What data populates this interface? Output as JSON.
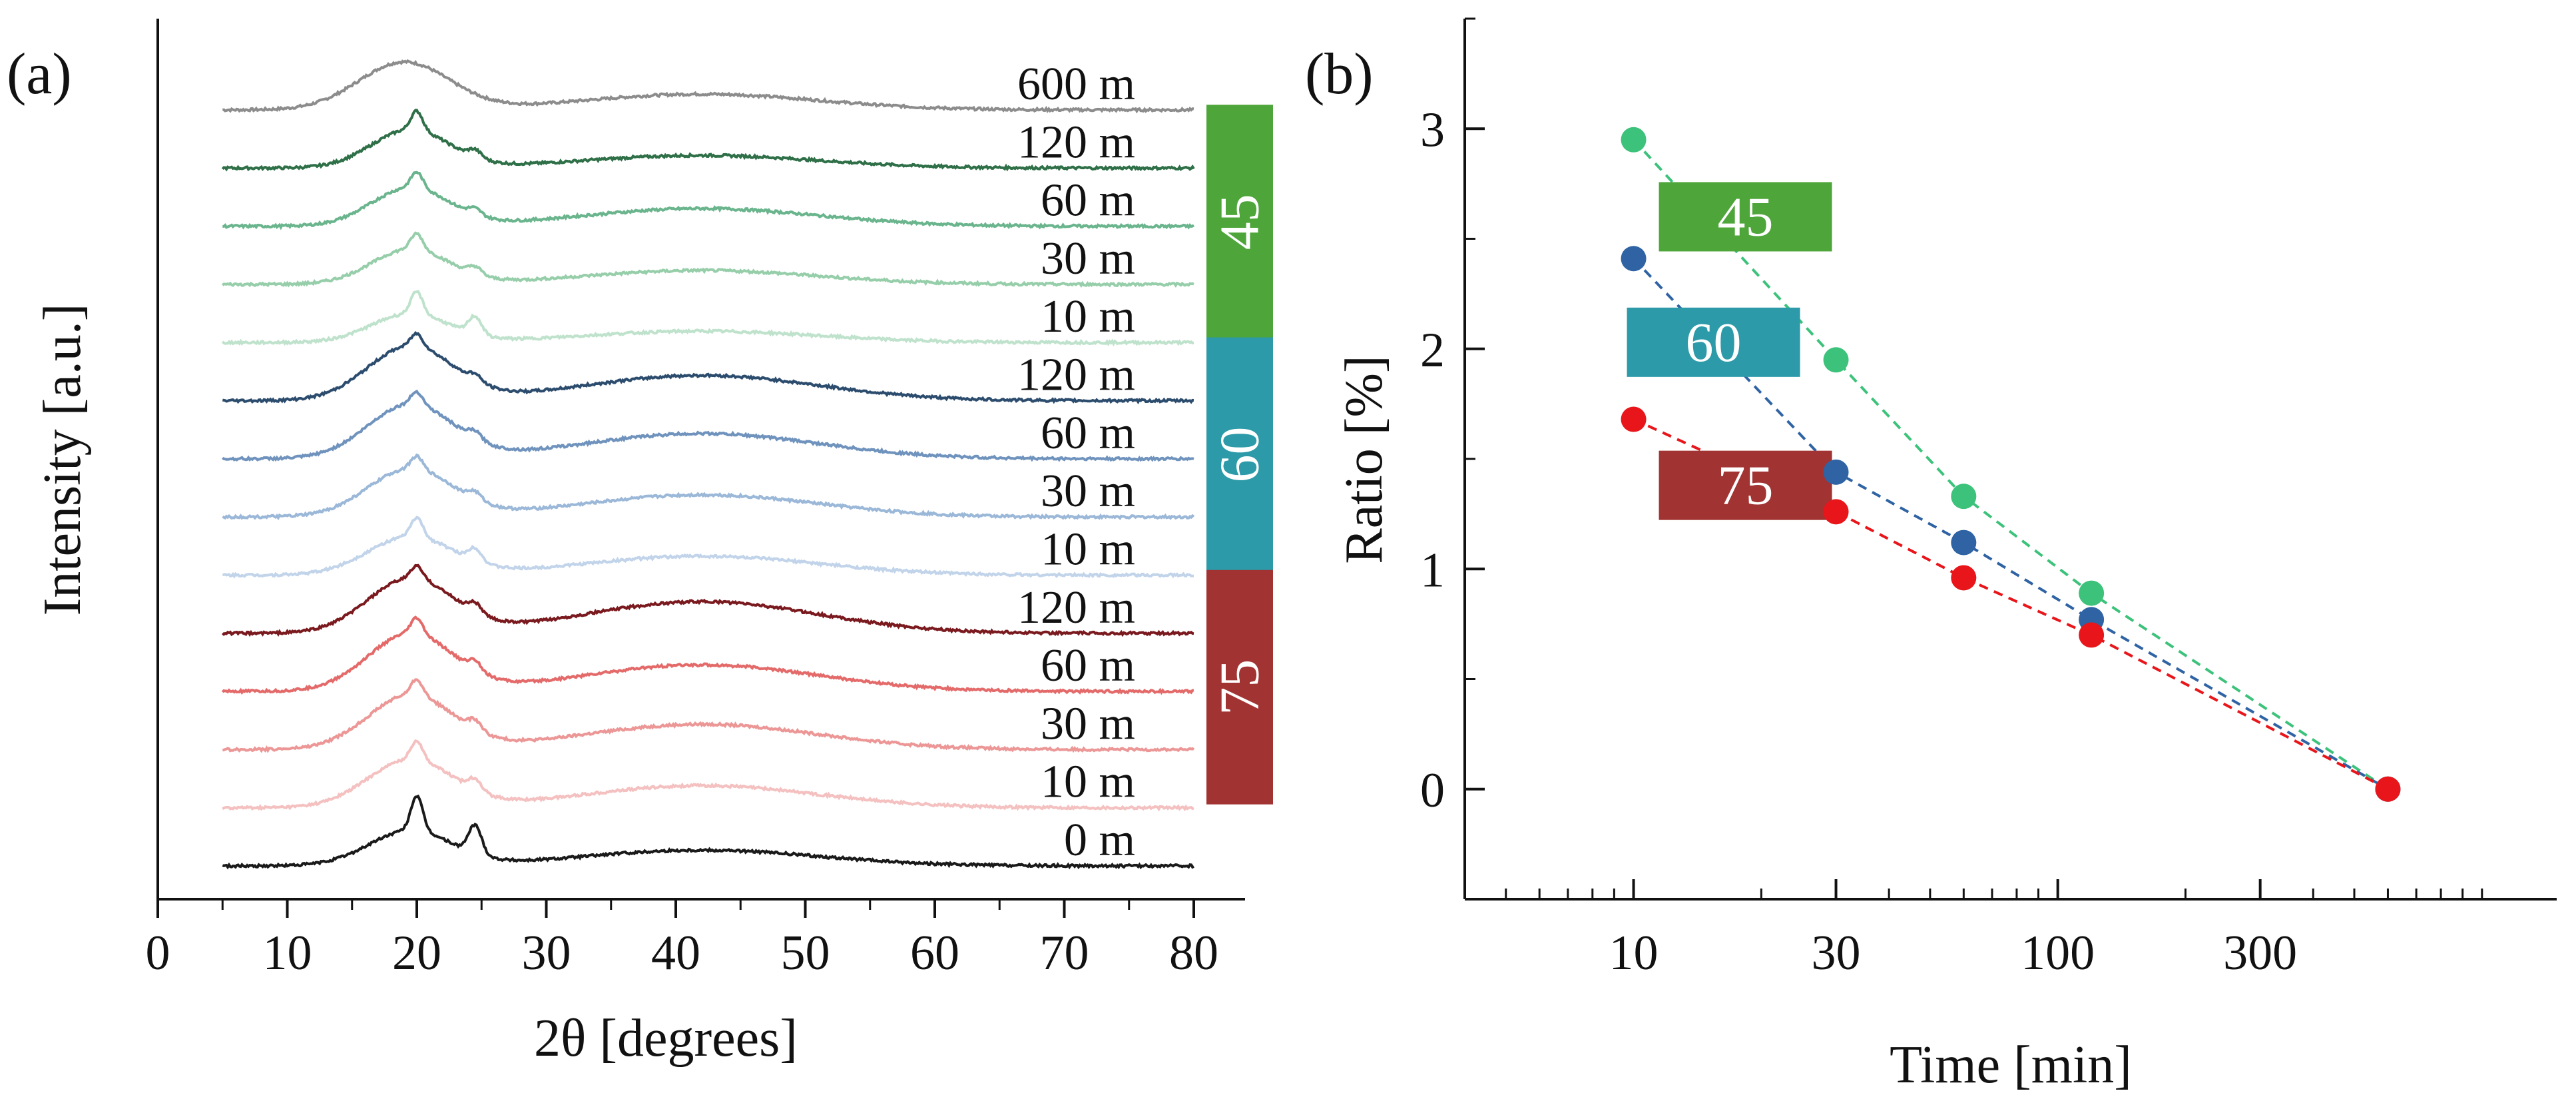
{
  "chart_data": [
    {
      "panel_label": "(a)",
      "type": "line",
      "title": "",
      "xlabel": "2θ [degrees]",
      "ylabel": "Intensity [a.u.]",
      "xlim": [
        0,
        80
      ],
      "x_ticks": [
        0,
        10,
        20,
        30,
        40,
        50,
        60,
        70,
        80
      ],
      "x_tick_labels": [
        "0",
        "10",
        "20",
        "30",
        "40",
        "50",
        "60",
        "70",
        "80"
      ],
      "x_data_range": [
        5,
        80
      ],
      "grid": false,
      "series": [
        {
          "name": "600 m",
          "group": "",
          "color": "#8c8c8c",
          "peaks": [
            {
              "x": 19,
              "h": 0.75,
              "w": 3.5
            },
            {
              "x": 42,
              "h": 0.25,
              "w": 9
            }
          ]
        },
        {
          "name": "120 m",
          "group": "45",
          "color": "#2f7048",
          "peaks": [
            {
              "x": 19.5,
              "h": 0.6,
              "w": 3
            },
            {
              "x": 20,
              "h": 0.3,
              "w": 0.45
            },
            {
              "x": 24.5,
              "h": 0.12,
              "w": 0.5
            },
            {
              "x": 42,
              "h": 0.2,
              "w": 9
            }
          ]
        },
        {
          "name": "60 m",
          "group": "45",
          "color": "#6ab58d",
          "peaks": [
            {
              "x": 19.5,
              "h": 0.6,
              "w": 3
            },
            {
              "x": 20,
              "h": 0.25,
              "w": 0.45
            },
            {
              "x": 24.5,
              "h": 0.1,
              "w": 0.5
            },
            {
              "x": 42,
              "h": 0.28,
              "w": 9
            }
          ]
        },
        {
          "name": "30 m",
          "group": "45",
          "color": "#96ceaa",
          "peaks": [
            {
              "x": 19.5,
              "h": 0.55,
              "w": 3
            },
            {
              "x": 20,
              "h": 0.25,
              "w": 0.45
            },
            {
              "x": 24.5,
              "h": 0.12,
              "w": 0.5
            },
            {
              "x": 42,
              "h": 0.22,
              "w": 9
            }
          ]
        },
        {
          "name": "10 m",
          "group": "45",
          "color": "#bfe2cc",
          "peaks": [
            {
              "x": 19.5,
              "h": 0.45,
              "w": 3
            },
            {
              "x": 20,
              "h": 0.35,
              "w": 0.45
            },
            {
              "x": 24.5,
              "h": 0.28,
              "w": 0.5
            },
            {
              "x": 42,
              "h": 0.18,
              "w": 9
            }
          ]
        },
        {
          "name": "120 m",
          "group": "60",
          "color": "#2c4c6e",
          "peaks": [
            {
              "x": 19.5,
              "h": 0.85,
              "w": 3.3
            },
            {
              "x": 20,
              "h": 0.2,
              "w": 0.45
            },
            {
              "x": 24.5,
              "h": 0.1,
              "w": 0.5
            },
            {
              "x": 42,
              "h": 0.4,
              "w": 9
            }
          ]
        },
        {
          "name": "60 m",
          "group": "60",
          "color": "#6f93bd",
          "peaks": [
            {
              "x": 19.5,
              "h": 0.85,
              "w": 3.3
            },
            {
              "x": 20,
              "h": 0.2,
              "w": 0.45
            },
            {
              "x": 24.5,
              "h": 0.12,
              "w": 0.5
            },
            {
              "x": 42,
              "h": 0.4,
              "w": 9
            }
          ]
        },
        {
          "name": "30 m",
          "group": "60",
          "color": "#9bb8d8",
          "peaks": [
            {
              "x": 19.5,
              "h": 0.75,
              "w": 3.3
            },
            {
              "x": 20,
              "h": 0.2,
              "w": 0.45
            },
            {
              "x": 24.5,
              "h": 0.12,
              "w": 0.5
            },
            {
              "x": 42,
              "h": 0.35,
              "w": 9
            }
          ]
        },
        {
          "name": "10 m",
          "group": "60",
          "color": "#c2d4ea",
          "peaks": [
            {
              "x": 19.5,
              "h": 0.6,
              "w": 3.3
            },
            {
              "x": 20,
              "h": 0.3,
              "w": 0.45
            },
            {
              "x": 24.5,
              "h": 0.2,
              "w": 0.5
            },
            {
              "x": 42,
              "h": 0.3,
              "w": 9
            }
          ]
        },
        {
          "name": "120 m",
          "group": "75",
          "color": "#7a1a1f",
          "peaks": [
            {
              "x": 19.5,
              "h": 0.85,
              "w": 3.3
            },
            {
              "x": 20,
              "h": 0.2,
              "w": 0.45
            },
            {
              "x": 24.5,
              "h": 0.15,
              "w": 0.5
            },
            {
              "x": 42,
              "h": 0.5,
              "w": 9
            }
          ]
        },
        {
          "name": "60 m",
          "group": "75",
          "color": "#e46a6a",
          "peaks": [
            {
              "x": 19.5,
              "h": 0.9,
              "w": 3.3
            },
            {
              "x": 20,
              "h": 0.25,
              "w": 0.45
            },
            {
              "x": 24.5,
              "h": 0.15,
              "w": 0.5
            },
            {
              "x": 42,
              "h": 0.42,
              "w": 9
            }
          ]
        },
        {
          "name": "30 m",
          "group": "75",
          "color": "#ec9696",
          "peaks": [
            {
              "x": 19.5,
              "h": 0.85,
              "w": 3.3
            },
            {
              "x": 20,
              "h": 0.25,
              "w": 0.45
            },
            {
              "x": 24.5,
              "h": 0.15,
              "w": 0.5
            },
            {
              "x": 42,
              "h": 0.4,
              "w": 9
            }
          ]
        },
        {
          "name": "10 m",
          "group": "75",
          "color": "#f4c0c0",
          "peaks": [
            {
              "x": 19.5,
              "h": 0.75,
              "w": 3.3
            },
            {
              "x": 20,
              "h": 0.3,
              "w": 0.45
            },
            {
              "x": 24.5,
              "h": 0.18,
              "w": 0.5
            },
            {
              "x": 42,
              "h": 0.35,
              "w": 9
            }
          ]
        },
        {
          "name": "0 m",
          "group": "",
          "color": "#1a1a1a",
          "peaks": [
            {
              "x": 19.5,
              "h": 0.55,
              "w": 3.2
            },
            {
              "x": 20,
              "h": 0.55,
              "w": 0.45
            },
            {
              "x": 24.5,
              "h": 0.45,
              "w": 0.5
            },
            {
              "x": 42,
              "h": 0.25,
              "w": 9
            }
          ]
        }
      ],
      "groups": [
        {
          "label": "45",
          "color": "#4ea53a"
        },
        {
          "label": "60",
          "color": "#2c9aa8"
        },
        {
          "label": "75",
          "color": "#a23333"
        }
      ]
    },
    {
      "panel_label": "(b)",
      "type": "scatter",
      "title": "",
      "xlabel": "Time [min]",
      "ylabel": "Ratio [%]",
      "x_scale": "log",
      "xlim": [
        4,
        1500
      ],
      "ylim": [
        -0.5,
        3.5
      ],
      "x_ticks": [
        10,
        30,
        100,
        300
      ],
      "x_tick_labels": [
        "10",
        "30",
        "100",
        "300"
      ],
      "y_ticks": [
        0,
        1,
        2,
        3
      ],
      "y_tick_labels": [
        "0",
        "1",
        "2",
        "3"
      ],
      "grid": false,
      "line_style": "dashed",
      "series": [
        {
          "name": "45",
          "color": "#3cc27a",
          "x": [
            10,
            30,
            60,
            120,
            600
          ],
          "y": [
            2.95,
            1.95,
            1.33,
            0.89,
            0
          ]
        },
        {
          "name": "60",
          "color": "#2f63a3",
          "x": [
            10,
            30,
            60,
            120,
            600
          ],
          "y": [
            2.41,
            1.44,
            1.12,
            0.77,
            0
          ]
        },
        {
          "name": "75",
          "color": "#e8161b",
          "x": [
            10,
            30,
            60,
            120,
            600
          ],
          "y": [
            1.68,
            1.26,
            0.96,
            0.7,
            0
          ]
        }
      ],
      "legend_boxes": [
        {
          "label": "45",
          "color": "#4ea53a"
        },
        {
          "label": "60",
          "color": "#2c9aa8"
        },
        {
          "label": "75",
          "color": "#a23333"
        }
      ]
    }
  ]
}
